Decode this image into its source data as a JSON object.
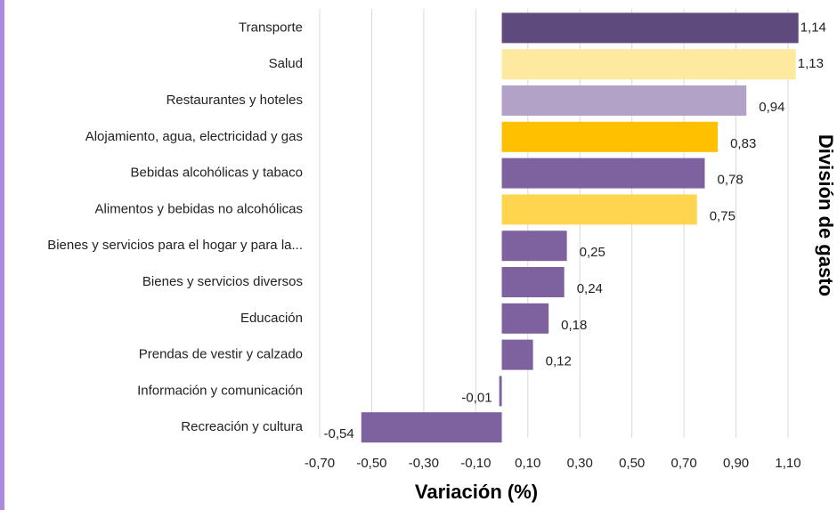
{
  "chart_data": {
    "type": "barh",
    "x_label": "Variación (%)",
    "y_label": "División de gasto",
    "categories": [
      "Transporte",
      "Salud",
      "Restaurantes y hoteles",
      "Alojamiento, agua, electricidad y gas",
      "Bebidas alcohólicas y tabaco",
      "Alimentos y bebidas no alcohólicas",
      "Bienes y servicios para el hogar y para la...",
      "Bienes y servicios diversos",
      "Educación",
      "Prendas de vestir y calzado",
      "Información y comunicación",
      "Recreación y cultura"
    ],
    "values": [
      1.14,
      1.13,
      0.94,
      0.83,
      0.78,
      0.75,
      0.25,
      0.24,
      0.18,
      0.12,
      -0.01,
      -0.54
    ],
    "value_labels": [
      "1,14",
      "1,13",
      "0,94",
      "0,83",
      "0,78",
      "0,75",
      "0,25",
      "0,24",
      "0,18",
      "0,12",
      "-0,01",
      "-0,54"
    ],
    "colors": [
      "#5e4a7d",
      "#fde9a0",
      "#b3a2c8",
      "#ffc000",
      "#7e62a0",
      "#ffd54f",
      "#7e62a0",
      "#7e62a0",
      "#7e62a0",
      "#7e62a0",
      "#7e62a0",
      "#7e62a0"
    ],
    "xlim": [
      -0.7,
      1.1
    ],
    "xticks": [
      {
        "value": -0.7,
        "label": "-0,70"
      },
      {
        "value": -0.5,
        "label": "-0,50"
      },
      {
        "value": -0.3,
        "label": "-0,30"
      },
      {
        "value": -0.1,
        "label": "-0,10"
      },
      {
        "value": 0.1,
        "label": "0,10"
      },
      {
        "value": 0.3,
        "label": "0,30"
      },
      {
        "value": 0.5,
        "label": "0,50"
      },
      {
        "value": 0.7,
        "label": "0,70"
      },
      {
        "value": 0.9,
        "label": "0,90"
      },
      {
        "value": 1.1,
        "label": "1,10"
      }
    ],
    "grid": true
  }
}
